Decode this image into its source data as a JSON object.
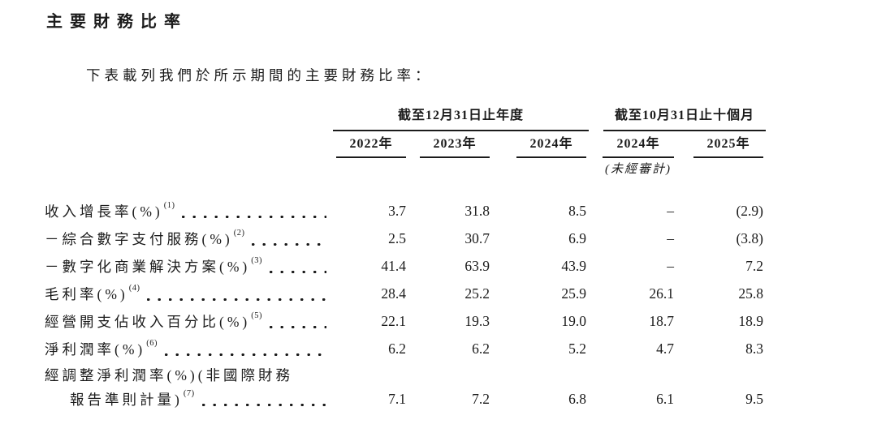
{
  "page": {
    "title": "主要財務比率",
    "intro": "下表載列我們於所示期間的主要財務比率："
  },
  "table": {
    "col_groups": [
      {
        "label": "截至12月31日止年度",
        "span": 3
      },
      {
        "label": "截至10月31日止十個月",
        "span": 2
      }
    ],
    "columns": [
      "2022年",
      "2023年",
      "2024年",
      "2024年",
      "2025年"
    ],
    "subnote": "(未經審計)",
    "rows": [
      {
        "label": "收入增長率(%)",
        "sup": "(1)",
        "values": [
          "3.7",
          "31.8",
          "8.5",
          "–",
          "(2.9)"
        ]
      },
      {
        "label": "－綜合數字支付服務(%)",
        "sup": "(2)",
        "values": [
          "2.5",
          "30.7",
          "6.9",
          "–",
          "(3.8)"
        ]
      },
      {
        "label": "－數字化商業解決方案(%)",
        "sup": "(3)",
        "values": [
          "41.4",
          "63.9",
          "43.9",
          "–",
          "7.2"
        ]
      },
      {
        "label": "毛利率(%)",
        "sup": "(4)",
        "values": [
          "28.4",
          "25.2",
          "25.9",
          "26.1",
          "25.8"
        ]
      },
      {
        "label": "經營開支佔收入百分比(%)",
        "sup": "(5)",
        "values": [
          "22.1",
          "19.3",
          "19.0",
          "18.7",
          "18.9"
        ]
      },
      {
        "label": "淨利潤率(%)",
        "sup": "(6)",
        "values": [
          "6.2",
          "6.2",
          "5.2",
          "4.7",
          "8.3"
        ]
      },
      {
        "label": "經調整淨利潤率(%)(非國際財務",
        "label2": "報告準則計量)",
        "sup": "(7)",
        "values": [
          "7.1",
          "7.2",
          "6.8",
          "6.1",
          "9.5"
        ]
      }
    ]
  }
}
